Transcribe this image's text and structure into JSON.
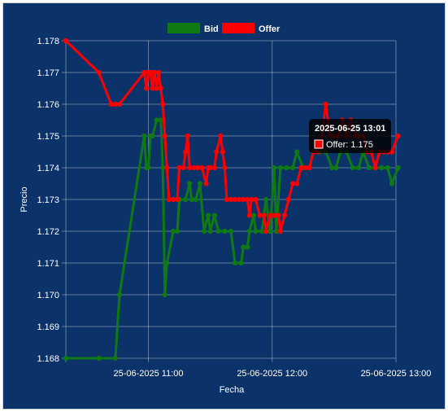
{
  "chart_data": {
    "type": "line",
    "xlabel": "Fecha",
    "ylabel": "Precio",
    "x_ticks": [
      "25-06-2025 11:00",
      "25-06-2025 12:00",
      "25-06-2025 13:00"
    ],
    "xlim": [
      "2025-06-25 10:20",
      "2025-06-25 13:00"
    ],
    "ylim": [
      1.168,
      1.178
    ],
    "y_ticks": [
      1.168,
      1.169,
      1.17,
      1.171,
      1.172,
      1.173,
      1.174,
      1.175,
      1.176,
      1.177,
      1.178
    ],
    "grid": true,
    "legend_position": "top-center",
    "tooltip": {
      "title": "2025-06-25 13:01",
      "label": "Offer: 1.175",
      "color": "#ff0000"
    },
    "series": [
      {
        "name": "Bid",
        "color": "#0f7a14",
        "points": [
          [
            "10:20",
            1.168
          ],
          [
            "10:36",
            1.168
          ],
          [
            "10:44",
            1.168
          ],
          [
            "10:46",
            1.17
          ],
          [
            "10:58",
            1.175
          ],
          [
            "10:59",
            1.174
          ],
          [
            "11:00",
            1.174
          ],
          [
            "11:01",
            1.175
          ],
          [
            "11:02",
            1.175
          ],
          [
            "11:04",
            1.1755
          ],
          [
            "11:06",
            1.1755
          ],
          [
            "11:07",
            1.174
          ],
          [
            "11:08",
            1.17
          ],
          [
            "11:09",
            1.171
          ],
          [
            "11:12",
            1.172
          ],
          [
            "11:14",
            1.172
          ],
          [
            "11:15",
            1.173
          ],
          [
            "11:18",
            1.173
          ],
          [
            "11:20",
            1.1735
          ],
          [
            "11:21",
            1.173
          ],
          [
            "11:23",
            1.173
          ],
          [
            "11:25",
            1.1735
          ],
          [
            "11:27",
            1.172
          ],
          [
            "11:29",
            1.1725
          ],
          [
            "11:30",
            1.172
          ],
          [
            "11:32",
            1.1725
          ],
          [
            "11:34",
            1.172
          ],
          [
            "11:37",
            1.172
          ],
          [
            "11:40",
            1.172
          ],
          [
            "11:42",
            1.171
          ],
          [
            "11:45",
            1.171
          ],
          [
            "11:46",
            1.1715
          ],
          [
            "11:48",
            1.1715
          ],
          [
            "11:49",
            1.172
          ],
          [
            "11:51",
            1.1725
          ],
          [
            "11:52",
            1.172
          ],
          [
            "11:55",
            1.172
          ],
          [
            "11:57",
            1.173
          ],
          [
            "11:59",
            1.172
          ],
          [
            "12:01",
            1.174
          ],
          [
            "12:02",
            1.172
          ],
          [
            "12:04",
            1.174
          ],
          [
            "12:07",
            1.174
          ],
          [
            "12:10",
            1.174
          ],
          [
            "12:12",
            1.1745
          ],
          [
            "12:15",
            1.174
          ],
          [
            "12:18",
            1.174
          ],
          [
            "12:20",
            1.1745
          ],
          [
            "12:23",
            1.1745
          ],
          [
            "12:26",
            1.1745
          ],
          [
            "12:29",
            1.174
          ],
          [
            "12:31",
            1.174
          ],
          [
            "12:33",
            1.1745
          ],
          [
            "12:36",
            1.1745
          ],
          [
            "12:39",
            1.174
          ],
          [
            "12:42",
            1.174
          ],
          [
            "12:44",
            1.1745
          ],
          [
            "12:47",
            1.174
          ],
          [
            "12:50",
            1.174
          ],
          [
            "12:53",
            1.174
          ],
          [
            "12:56",
            1.174
          ],
          [
            "12:58",
            1.1735
          ],
          [
            "13:01",
            1.174
          ]
        ]
      },
      {
        "name": "Offer",
        "color": "#ff0000",
        "points": [
          [
            "10:20",
            1.178
          ],
          [
            "10:36",
            1.177
          ],
          [
            "10:42",
            1.176
          ],
          [
            "10:44",
            1.176
          ],
          [
            "10:46",
            1.176
          ],
          [
            "10:58",
            1.177
          ],
          [
            "10:59",
            1.1765
          ],
          [
            "11:00",
            1.177
          ],
          [
            "11:01",
            1.177
          ],
          [
            "11:02",
            1.1765
          ],
          [
            "11:03",
            1.177
          ],
          [
            "11:04",
            1.1765
          ],
          [
            "11:05",
            1.177
          ],
          [
            "11:06",
            1.1765
          ],
          [
            "11:07",
            1.176
          ],
          [
            "11:08",
            1.175
          ],
          [
            "11:09",
            1.174
          ],
          [
            "11:10",
            1.173
          ],
          [
            "11:12",
            1.173
          ],
          [
            "11:14",
            1.173
          ],
          [
            "11:15",
            1.174
          ],
          [
            "11:17",
            1.174
          ],
          [
            "11:18",
            1.1745
          ],
          [
            "11:19",
            1.175
          ],
          [
            "11:20",
            1.174
          ],
          [
            "11:22",
            1.174
          ],
          [
            "11:24",
            1.174
          ],
          [
            "11:26",
            1.174
          ],
          [
            "11:28",
            1.1735
          ],
          [
            "11:29",
            1.174
          ],
          [
            "11:30",
            1.174
          ],
          [
            "11:32",
            1.174
          ],
          [
            "11:33",
            1.1745
          ],
          [
            "11:35",
            1.175
          ],
          [
            "11:36",
            1.1745
          ],
          [
            "11:37",
            1.174
          ],
          [
            "11:38",
            1.173
          ],
          [
            "11:40",
            1.173
          ],
          [
            "11:42",
            1.173
          ],
          [
            "11:44",
            1.173
          ],
          [
            "11:46",
            1.173
          ],
          [
            "11:48",
            1.173
          ],
          [
            "11:49",
            1.1725
          ],
          [
            "11:50",
            1.173
          ],
          [
            "11:52",
            1.173
          ],
          [
            "11:54",
            1.1725
          ],
          [
            "11:56",
            1.1725
          ],
          [
            "11:57",
            1.172
          ],
          [
            "11:59",
            1.1725
          ],
          [
            "12:01",
            1.1725
          ],
          [
            "12:03",
            1.1725
          ],
          [
            "12:04",
            1.172
          ],
          [
            "12:06",
            1.1725
          ],
          [
            "12:08",
            1.173
          ],
          [
            "12:10",
            1.1735
          ],
          [
            "12:12",
            1.1735
          ],
          [
            "12:14",
            1.174
          ],
          [
            "12:16",
            1.174
          ],
          [
            "12:18",
            1.174
          ],
          [
            "12:20",
            1.1745
          ],
          [
            "12:22",
            1.1745
          ],
          [
            "12:24",
            1.175
          ],
          [
            "12:26",
            1.176
          ],
          [
            "12:27",
            1.1755
          ],
          [
            "12:28",
            1.175
          ],
          [
            "12:30",
            1.175
          ],
          [
            "12:32",
            1.175
          ],
          [
            "12:34",
            1.1755
          ],
          [
            "12:36",
            1.175
          ],
          [
            "12:38",
            1.1755
          ],
          [
            "12:40",
            1.175
          ],
          [
            "12:42",
            1.175
          ],
          [
            "12:44",
            1.175
          ],
          [
            "12:46",
            1.1745
          ],
          [
            "12:48",
            1.1745
          ],
          [
            "12:50",
            1.174
          ],
          [
            "12:52",
            1.1745
          ],
          [
            "12:54",
            1.1745
          ],
          [
            "12:56",
            1.1745
          ],
          [
            "12:58",
            1.1745
          ],
          [
            "13:01",
            1.175
          ]
        ]
      }
    ]
  }
}
